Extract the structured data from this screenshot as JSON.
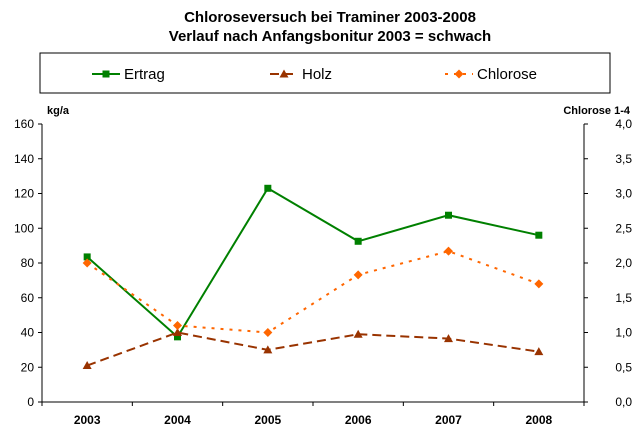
{
  "chart_data": {
    "type": "line",
    "title": "Chloroseversuch bei Traminer 2003-2008",
    "subtitle": "Verlauf nach Anfangsbonitur 2003 = schwach",
    "ylabel": "kg/a",
    "y2label": "Chlorose 1-4",
    "categories": [
      "2003",
      "2004",
      "2005",
      "2006",
      "2007",
      "2008"
    ],
    "ylim": [
      0,
      160
    ],
    "yticks": [
      "0",
      "20",
      "40",
      "60",
      "80",
      "100",
      "120",
      "140",
      "160"
    ],
    "y2lim": [
      0,
      4
    ],
    "y2ticks": [
      "0,0",
      "0,5",
      "1,0",
      "1,5",
      "2,0",
      "2,5",
      "3,0",
      "3,5",
      "4,0"
    ],
    "grid": false,
    "legend": "top",
    "series": [
      {
        "name": "Ertrag",
        "axis": "left",
        "color": "#008000",
        "marker": "square",
        "dash": "solid",
        "values": [
          83.5,
          37.5,
          123,
          92.5,
          107.5,
          96
        ]
      },
      {
        "name": "Holz",
        "axis": "left",
        "color": "#993300",
        "marker": "triangle",
        "dash": "dashed",
        "values": [
          21,
          40,
          30,
          39,
          36.5,
          29
        ]
      },
      {
        "name": "Chlorose",
        "axis": "right",
        "color": "#FF6600",
        "marker": "diamond",
        "dash": "dotted",
        "values": [
          2.0,
          1.1,
          1.0,
          1.83,
          2.17,
          1.7
        ]
      }
    ]
  }
}
